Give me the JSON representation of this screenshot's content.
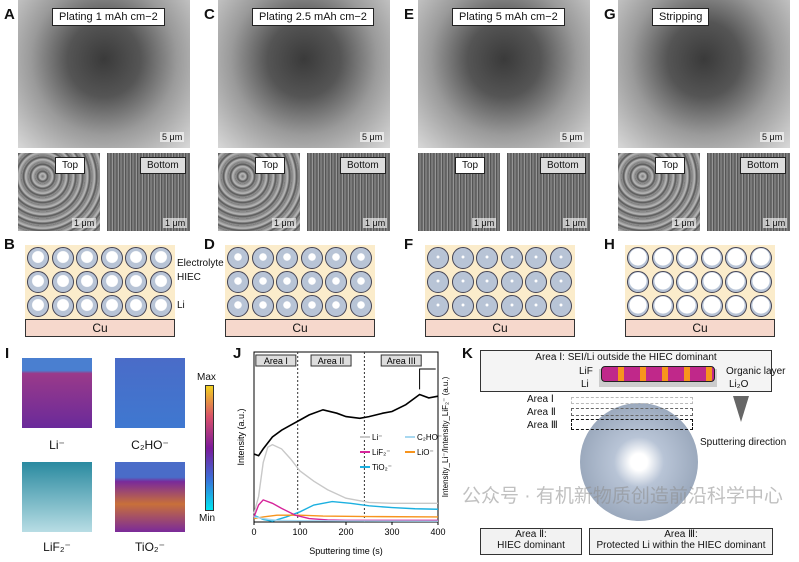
{
  "columns": [
    {
      "label": "A",
      "title": "Plating 1 mAh cm−2",
      "scale": "5 μm",
      "top": "Top",
      "bottom": "Bottom",
      "small_scale": "1 μm",
      "schematic_label": "B",
      "li_fill": 0.35
    },
    {
      "label": "C",
      "title": "Plating 2.5 mAh cm−2",
      "scale": "5 μm",
      "top": "Top",
      "bottom": "Bottom",
      "small_scale": "1 μm",
      "schematic_label": "D",
      "li_fill": 0.65
    },
    {
      "label": "E",
      "title": "Plating 5 mAh cm−2",
      "scale": "5 μm",
      "top": "Top",
      "bottom": "Bottom",
      "small_scale": "1 μm",
      "schematic_label": "F",
      "li_fill": 0.95
    },
    {
      "label": "G",
      "title": "Stripping",
      "scale": "5 μm",
      "top": "Top",
      "bottom": "Bottom",
      "small_scale": "1 μm",
      "schematic_label": "H",
      "li_fill": 0
    }
  ],
  "schematic": {
    "cu": "Cu",
    "electrolyte": "Electrolyte",
    "hiec": "HIEC",
    "li": "Li",
    "colors": {
      "electrolyte": "#fbeccb",
      "cu": "#f6d8cc",
      "li": "#b8c4d6"
    }
  },
  "panel_i": {
    "label": "I",
    "cubes": [
      "Li⁻",
      "C₂HO⁻",
      "LiF₂⁻",
      "TiO₂⁻"
    ],
    "colorbar": {
      "max": "Max",
      "min": "Min",
      "colors": [
        "#00e5f0",
        "#3a6fd8",
        "#7b1a9a",
        "#d8506a",
        "#f2d020"
      ]
    }
  },
  "chart_data": {
    "label": "J",
    "type": "line",
    "xlabel": "Sputtering time (s)",
    "ylabel": "Intensity (a.u.)",
    "ylabel_right": "Intensity_Li⁻/Intensity_LiF₂⁻ (a.u.)",
    "xlim": [
      0,
      400
    ],
    "xticks": [
      0,
      100,
      200,
      300,
      400
    ],
    "ylim": [
      0,
      1
    ],
    "areas": [
      {
        "name": "Area I"
      },
      {
        "name": "Area II"
      },
      {
        "name": "Area III"
      }
    ],
    "area_boundaries": [
      95,
      240
    ],
    "legend": "center-right",
    "series": [
      {
        "name": "",
        "axis": "right",
        "color": "#000000",
        "x": [
          0,
          10,
          20,
          40,
          60,
          80,
          100,
          120,
          150,
          180,
          200,
          230,
          250,
          280,
          300,
          330,
          360,
          380,
          400
        ],
        "y": [
          0.4,
          0.39,
          0.43,
          0.5,
          0.54,
          0.57,
          0.6,
          0.63,
          0.66,
          0.64,
          0.62,
          0.61,
          0.62,
          0.64,
          0.65,
          0.69,
          0.75,
          0.73,
          0.74
        ]
      },
      {
        "name": "Li⁻",
        "color": "#c8c8c8",
        "x": [
          0,
          10,
          20,
          30,
          40,
          60,
          80,
          100,
          130,
          160,
          200,
          250,
          300,
          400
        ],
        "y": [
          0.05,
          0.15,
          0.35,
          0.44,
          0.455,
          0.43,
          0.37,
          0.3,
          0.24,
          0.19,
          0.14,
          0.115,
          0.11,
          0.11
        ]
      },
      {
        "name": "C₂HO⁻",
        "color": "#a8d8f0",
        "x": [
          0,
          20,
          50,
          100,
          200,
          400
        ],
        "y": [
          0.03,
          0.02,
          0.01,
          0.008,
          0.006,
          0.005
        ]
      },
      {
        "name": "LiF₂⁻",
        "color": "#d6259a",
        "x": [
          0,
          10,
          20,
          40,
          60,
          90,
          120,
          160,
          200,
          300,
          400
        ],
        "y": [
          0.03,
          0.1,
          0.13,
          0.11,
          0.08,
          0.04,
          0.02,
          0.012,
          0.01,
          0.01,
          0.01
        ]
      },
      {
        "name": "LiO⁻",
        "color": "#f7941d",
        "x": [
          0,
          20,
          50,
          100,
          150,
          250,
          400
        ],
        "y": [
          0.02,
          0.03,
          0.04,
          0.04,
          0.035,
          0.032,
          0.03
        ]
      },
      {
        "name": "TiO₂⁻",
        "color": "#1cb0e0",
        "x": [
          0,
          20,
          40,
          70,
          100,
          130,
          170,
          210,
          250,
          300,
          350,
          400
        ],
        "y": [
          0.04,
          0.015,
          0.005,
          0.03,
          0.06,
          0.1,
          0.12,
          0.11,
          0.095,
          0.085,
          0.078,
          0.075
        ]
      }
    ]
  },
  "panel_k": {
    "label": "K",
    "top_title": "Area Ⅰ: SEI/Li outside the HIEC dominant",
    "lif": "LiF",
    "li": "Li",
    "organic": "Organic layer",
    "li2o": "Li₂O",
    "areas": [
      "Area Ⅰ",
      "Area Ⅱ",
      "Area Ⅲ"
    ],
    "sputter": "Sputtering direction",
    "box2": [
      "Area Ⅱ:",
      "HIEC dominant"
    ],
    "box3": [
      "Area Ⅲ:",
      "Protected Li within the HIEC dominant"
    ]
  },
  "watermark": "公众号 · 有机新物质创造前沿科学中心"
}
